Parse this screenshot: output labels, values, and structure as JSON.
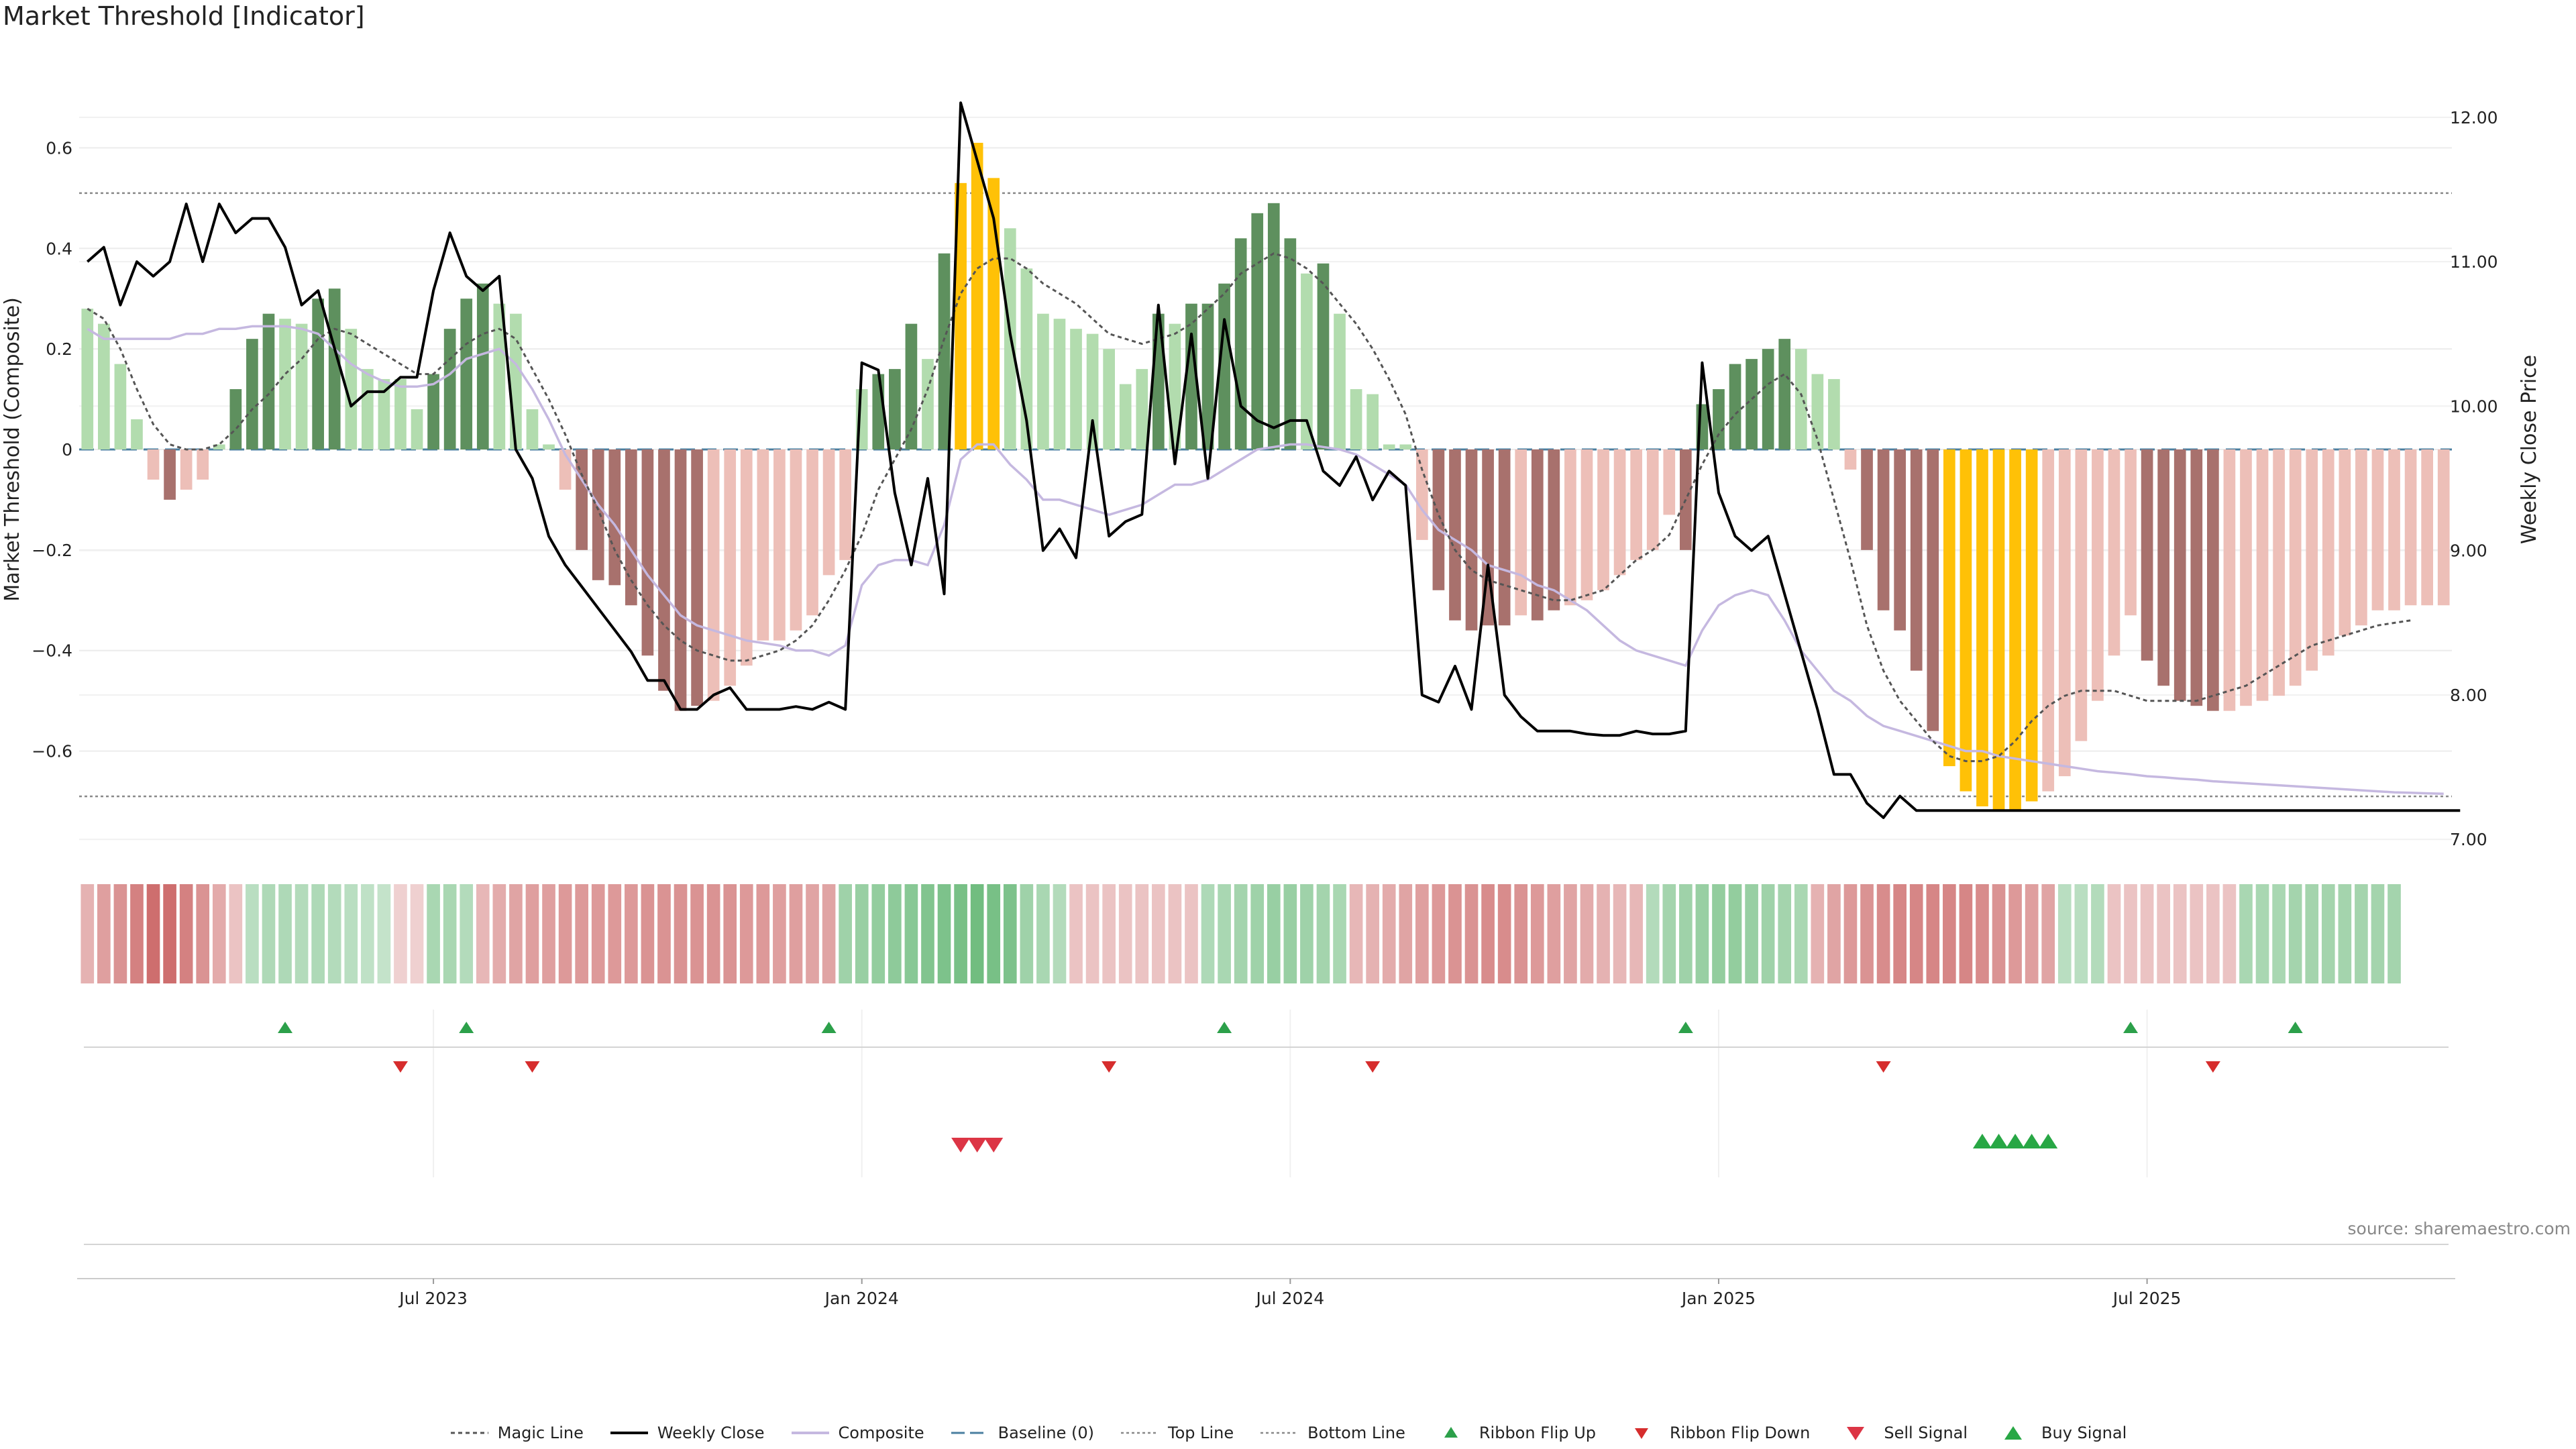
{
  "title": "Market Threshold [Indicator]",
  "source": "source: sharemaestro.com",
  "colors": {
    "strong_green": "#5e905e",
    "light_green": "#b2dcae",
    "strong_red": "#a8716d",
    "light_red": "#edbfb8",
    "extreme": "#ffc107",
    "magic": "#555555",
    "price": "#000000",
    "composite": "#c5b8e0",
    "baseline": "#4a7fa0",
    "flip_up": "#2ca04a",
    "flip_down": "#d62d2d",
    "sell": "#dc3545",
    "buy": "#28a745"
  },
  "chart_data": {
    "type": "bar",
    "ylabel": "Market Threshold (Composite)",
    "y2label": "Weekly Close Price",
    "ylim": [
      -0.79,
      0.79
    ],
    "y2lim": [
      6.95,
      12.45
    ],
    "yticks": [
      "0.6",
      "0.4",
      "0.2",
      "0",
      "−0.2",
      "−0.4",
      "−0.6"
    ],
    "ytick_values": [
      0.6,
      0.4,
      0.2,
      0,
      -0.2,
      -0.4,
      -0.6
    ],
    "y2ticks": [
      "12.00",
      "11.00",
      "10.00",
      "9.00",
      "8.00",
      "7.00"
    ],
    "y2tick_values": [
      12,
      11,
      10,
      9,
      8,
      7
    ],
    "xticks": [
      "Jul 2023",
      "Jan 2024",
      "Jul 2024",
      "Jan 2025",
      "Jul 2025"
    ],
    "xtick_weeks": [
      21,
      47,
      73,
      99,
      125
    ],
    "top_line": 0.51,
    "bottom_line": -0.69,
    "baseline": 0,
    "weeks": 144,
    "composite_bars": [
      0.28,
      0.25,
      0.17,
      0.06,
      -0.06,
      -0.1,
      -0.08,
      -0.06,
      0.01,
      0.12,
      0.22,
      0.27,
      0.26,
      0.25,
      0.3,
      0.32,
      0.24,
      0.16,
      0.14,
      0.14,
      0.08,
      0.15,
      0.24,
      0.3,
      0.33,
      0.29,
      0.27,
      0.08,
      0.01,
      -0.08,
      -0.2,
      -0.26,
      -0.27,
      -0.31,
      -0.41,
      -0.48,
      -0.52,
      -0.51,
      -0.5,
      -0.47,
      -0.43,
      -0.38,
      -0.38,
      -0.36,
      -0.33,
      -0.25,
      -0.22,
      0.12,
      0.15,
      0.16,
      0.25,
      0.18,
      0.39,
      0.53,
      0.61,
      0.54,
      0.44,
      0.36,
      0.27,
      0.26,
      0.24,
      0.23,
      0.2,
      0.13,
      0.16,
      0.27,
      0.25,
      0.29,
      0.29,
      0.33,
      0.42,
      0.47,
      0.49,
      0.42,
      0.35,
      0.37,
      0.27,
      0.12,
      0.11,
      0.01,
      0.01,
      -0.18,
      -0.28,
      -0.34,
      -0.36,
      -0.35,
      -0.35,
      -0.33,
      -0.34,
      -0.32,
      -0.31,
      -0.3,
      -0.28,
      -0.25,
      -0.22,
      -0.2,
      -0.13,
      -0.2,
      0.09,
      0.12,
      0.17,
      0.18,
      0.2,
      0.22,
      0.2,
      0.15,
      0.14,
      -0.04,
      -0.2,
      -0.32,
      -0.36,
      -0.44,
      -0.56,
      -0.63,
      -0.68,
      -0.71,
      -0.72,
      -0.72,
      -0.7,
      -0.68,
      -0.65,
      -0.58,
      -0.5,
      -0.41,
      -0.33,
      -0.42,
      -0.47,
      -0.5,
      -0.51,
      -0.52,
      -0.52,
      -0.51,
      -0.5,
      -0.49,
      -0.47,
      -0.44,
      -0.41,
      -0.37,
      -0.35,
      -0.32,
      -0.32,
      -0.31,
      -0.31,
      -0.31
    ],
    "bar_class": [
      "LG",
      "LG",
      "LG",
      "LG",
      "LR",
      "SR",
      "LR",
      "LR",
      "LG",
      "SG",
      "SG",
      "SG",
      "LG",
      "LG",
      "SG",
      "SG",
      "LG",
      "LG",
      "LG",
      "LG",
      "LG",
      "SG",
      "SG",
      "SG",
      "SG",
      "LG",
      "LG",
      "LG",
      "LG",
      "LR",
      "SR",
      "SR",
      "SR",
      "SR",
      "SR",
      "SR",
      "SR",
      "SR",
      "LR",
      "LR",
      "LR",
      "LR",
      "LR",
      "LR",
      "LR",
      "LR",
      "LR",
      "LG",
      "SG",
      "SG",
      "SG",
      "LG",
      "SG",
      "EX",
      "EX",
      "EX",
      "LG",
      "LG",
      "LG",
      "LG",
      "LG",
      "LG",
      "LG",
      "LG",
      "LG",
      "SG",
      "LG",
      "SG",
      "SG",
      "SG",
      "SG",
      "SG",
      "SG",
      "SG",
      "LG",
      "SG",
      "LG",
      "LG",
      "LG",
      "LG",
      "LG",
      "LR",
      "SR",
      "SR",
      "SR",
      "SR",
      "SR",
      "LR",
      "SR",
      "SR",
      "LR",
      "LR",
      "LR",
      "LR",
      "LR",
      "LR",
      "LR",
      "SR",
      "SG",
      "SG",
      "SG",
      "SG",
      "SG",
      "SG",
      "LG",
      "LG",
      "LG",
      "LR",
      "SR",
      "SR",
      "SR",
      "SR",
      "SR",
      "EX",
      "EX",
      "EX",
      "EX",
      "EX",
      "EX",
      "LR",
      "LR",
      "LR",
      "LR",
      "LR",
      "LR",
      "SR",
      "SR",
      "SR",
      "SR",
      "SR",
      "LR",
      "LR",
      "LR",
      "LR",
      "LR",
      "LR",
      "LR",
      "LR",
      "LR",
      "LR",
      "LR",
      "LR",
      "LR",
      "LR"
    ],
    "series": [
      {
        "name": "Weekly Close",
        "values": [
          11.0,
          11.1,
          10.7,
          11.0,
          10.9,
          11.0,
          11.4,
          11.0,
          11.4,
          11.2,
          11.3,
          11.3,
          11.1,
          10.7,
          10.8,
          10.4,
          10.0,
          10.1,
          10.1,
          10.2,
          10.2,
          10.8,
          11.2,
          10.9,
          10.8,
          10.9,
          9.7,
          9.5,
          9.1,
          8.9,
          8.75,
          8.6,
          8.45,
          8.3,
          8.1,
          8.1,
          7.9,
          7.9,
          8.0,
          8.05,
          7.9,
          7.9,
          7.9,
          7.92,
          7.9,
          7.95,
          7.9,
          10.3,
          10.25,
          9.4,
          8.9,
          9.5,
          8.7,
          12.1,
          11.7,
          11.3,
          10.5,
          9.9,
          9.0,
          9.15,
          8.95,
          9.9,
          9.1,
          9.2,
          9.25,
          10.7,
          9.6,
          10.5,
          9.5,
          10.6,
          10.0,
          9.9,
          9.85,
          9.9,
          9.9,
          9.55,
          9.45,
          9.65,
          9.35,
          9.55,
          9.45,
          8.0,
          7.95,
          8.2,
          7.9,
          8.9,
          8.0,
          7.85,
          7.75,
          7.75,
          7.75,
          7.73,
          7.72,
          7.72,
          7.75,
          7.73,
          7.73,
          7.75,
          10.3,
          9.4,
          9.1,
          9.0,
          9.1,
          8.7,
          8.3,
          7.9,
          7.45,
          7.45,
          7.25,
          7.15,
          7.3,
          7.2,
          7.2,
          7.2,
          7.2,
          7.2,
          7.2,
          7.2,
          7.2,
          7.2,
          7.2,
          7.2,
          7.2,
          7.2,
          7.2,
          7.2,
          7.2,
          7.2,
          7.2,
          7.2,
          7.2,
          7.2,
          7.2,
          7.2,
          7.2,
          7.2,
          7.2,
          7.2,
          7.2,
          7.2,
          7.2,
          7.2,
          7.2,
          7.2,
          7.2
        ]
      },
      {
        "name": "Composite",
        "values": [
          0.24,
          0.22,
          0.22,
          0.22,
          0.22,
          0.22,
          0.23,
          0.23,
          0.24,
          0.24,
          0.245,
          0.245,
          0.245,
          0.24,
          0.23,
          0.2,
          0.17,
          0.15,
          0.135,
          0.125,
          0.125,
          0.13,
          0.15,
          0.18,
          0.19,
          0.2,
          0.17,
          0.12,
          0.06,
          -0.01,
          -0.06,
          -0.11,
          -0.15,
          -0.2,
          -0.25,
          -0.29,
          -0.33,
          -0.35,
          -0.36,
          -0.37,
          -0.38,
          -0.385,
          -0.39,
          -0.4,
          -0.4,
          -0.41,
          -0.39,
          -0.27,
          -0.23,
          -0.22,
          -0.22,
          -0.23,
          -0.15,
          -0.02,
          0.01,
          0.01,
          -0.03,
          -0.06,
          -0.1,
          -0.1,
          -0.11,
          -0.12,
          -0.13,
          -0.12,
          -0.11,
          -0.09,
          -0.07,
          -0.07,
          -0.06,
          -0.04,
          -0.02,
          0.0,
          0.005,
          0.01,
          0.01,
          0.005,
          0.0,
          -0.01,
          -0.03,
          -0.05,
          -0.07,
          -0.12,
          -0.16,
          -0.18,
          -0.2,
          -0.23,
          -0.24,
          -0.25,
          -0.27,
          -0.28,
          -0.3,
          -0.32,
          -0.35,
          -0.38,
          -0.4,
          -0.41,
          -0.42,
          -0.43,
          -0.36,
          -0.31,
          -0.29,
          -0.28,
          -0.29,
          -0.34,
          -0.4,
          -0.44,
          -0.48,
          -0.5,
          -0.53,
          -0.55,
          -0.56,
          -0.57,
          -0.58,
          -0.59,
          -0.6,
          -0.6,
          -0.61,
          -0.615,
          -0.62,
          -0.625,
          -0.63,
          -0.635,
          -0.64,
          -0.643,
          -0.646,
          -0.65,
          -0.652,
          -0.655,
          -0.657,
          -0.66,
          -0.662,
          -0.664,
          -0.666,
          -0.668,
          -0.67,
          -0.672,
          -0.674,
          -0.676,
          -0.678,
          -0.68,
          -0.682,
          -0.683,
          -0.684,
          -0.685
        ]
      },
      {
        "name": "Magic Line",
        "values": [
          0.28,
          0.26,
          0.2,
          0.12,
          0.05,
          0.01,
          -0.0,
          0.0,
          0.01,
          0.04,
          0.08,
          0.11,
          0.15,
          0.18,
          0.22,
          0.24,
          0.23,
          0.21,
          0.19,
          0.17,
          0.15,
          0.15,
          0.18,
          0.21,
          0.23,
          0.24,
          0.22,
          0.16,
          0.1,
          0.03,
          -0.05,
          -0.12,
          -0.2,
          -0.26,
          -0.31,
          -0.35,
          -0.38,
          -0.4,
          -0.41,
          -0.42,
          -0.42,
          -0.41,
          -0.4,
          -0.38,
          -0.35,
          -0.3,
          -0.24,
          -0.17,
          -0.08,
          -0.02,
          0.04,
          0.12,
          0.22,
          0.31,
          0.36,
          0.38,
          0.38,
          0.36,
          0.33,
          0.31,
          0.29,
          0.26,
          0.23,
          0.22,
          0.21,
          0.22,
          0.23,
          0.25,
          0.28,
          0.31,
          0.35,
          0.37,
          0.39,
          0.38,
          0.36,
          0.33,
          0.29,
          0.25,
          0.2,
          0.14,
          0.07,
          -0.04,
          -0.13,
          -0.2,
          -0.24,
          -0.26,
          -0.27,
          -0.28,
          -0.29,
          -0.3,
          -0.3,
          -0.29,
          -0.28,
          -0.25,
          -0.22,
          -0.2,
          -0.17,
          -0.1,
          -0.03,
          0.03,
          0.07,
          0.1,
          0.13,
          0.15,
          0.11,
          0.02,
          -0.1,
          -0.22,
          -0.35,
          -0.44,
          -0.5,
          -0.54,
          -0.58,
          -0.61,
          -0.62,
          -0.62,
          -0.61,
          -0.58,
          -0.54,
          -0.51,
          -0.49,
          -0.48,
          -0.48,
          -0.48,
          -0.49,
          -0.5,
          -0.5,
          -0.5,
          -0.5,
          -0.49,
          -0.48,
          -0.47,
          -0.45,
          -0.43,
          -0.41,
          -0.39,
          -0.38,
          -0.37,
          -0.36,
          -0.35,
          -0.345,
          -0.34
        ]
      }
    ],
    "ribbon": [
      -0.35,
      -0.5,
      -0.6,
      -0.75,
      -0.9,
      -0.9,
      -0.75,
      -0.6,
      -0.4,
      -0.2,
      0.25,
      0.35,
      0.35,
      0.3,
      0.35,
      0.3,
      0.25,
      0.2,
      0.15,
      -0.1,
      -0.1,
      0.4,
      0.4,
      0.3,
      -0.3,
      -0.4,
      -0.45,
      -0.5,
      -0.5,
      -0.55,
      -0.55,
      -0.55,
      -0.55,
      -0.55,
      -0.6,
      -0.6,
      -0.6,
      -0.6,
      -0.6,
      -0.6,
      -0.55,
      -0.55,
      -0.5,
      -0.5,
      -0.45,
      -0.45,
      0.5,
      0.55,
      0.6,
      0.65,
      0.7,
      0.75,
      0.8,
      0.85,
      0.9,
      0.85,
      0.8,
      0.5,
      0.4,
      0.3,
      -0.2,
      -0.2,
      -0.2,
      -0.2,
      -0.2,
      -0.2,
      -0.2,
      -0.2,
      0.35,
      0.4,
      0.45,
      0.5,
      0.55,
      0.55,
      0.5,
      0.45,
      0.4,
      -0.3,
      -0.35,
      -0.4,
      -0.45,
      -0.5,
      -0.55,
      -0.6,
      -0.6,
      -0.65,
      -0.65,
      -0.6,
      -0.55,
      -0.5,
      -0.45,
      -0.4,
      -0.35,
      -0.3,
      -0.3,
      0.3,
      0.45,
      0.5,
      0.55,
      0.6,
      0.6,
      0.55,
      0.5,
      0.45,
      0.4,
      -0.35,
      -0.45,
      -0.55,
      -0.6,
      -0.65,
      -0.7,
      -0.7,
      -0.7,
      -0.7,
      -0.7,
      -0.65,
      -0.6,
      -0.55,
      -0.5,
      -0.45,
      0.25,
      0.25,
      0.3,
      -0.2,
      -0.2,
      -0.2,
      -0.2,
      -0.2,
      -0.2,
      -0.2,
      -0.2,
      0.4,
      0.4,
      0.4,
      0.45,
      0.45,
      0.45,
      0.45,
      0.45,
      0.45,
      0.45
    ],
    "flip_up_weeks": [
      12,
      23,
      45,
      69,
      97,
      124,
      134
    ],
    "flip_down_weeks": [
      19,
      27,
      62,
      78,
      109,
      129
    ],
    "sell_weeks": [
      53,
      54,
      55
    ],
    "buy_weeks": [
      115,
      116,
      117,
      118,
      119
    ]
  },
  "legend": [
    {
      "key": "magic",
      "label": "Magic Line"
    },
    {
      "key": "price",
      "label": "Weekly Close"
    },
    {
      "key": "composite",
      "label": "Composite"
    },
    {
      "key": "baseline",
      "label": "Baseline (0)"
    },
    {
      "key": "top",
      "label": "Top Line"
    },
    {
      "key": "bottom",
      "label": "Bottom Line"
    },
    {
      "key": "flip_up",
      "label": "Ribbon Flip Up"
    },
    {
      "key": "flip_down",
      "label": "Ribbon Flip Down"
    },
    {
      "key": "sell",
      "label": "Sell Signal"
    },
    {
      "key": "buy",
      "label": "Buy Signal"
    }
  ]
}
